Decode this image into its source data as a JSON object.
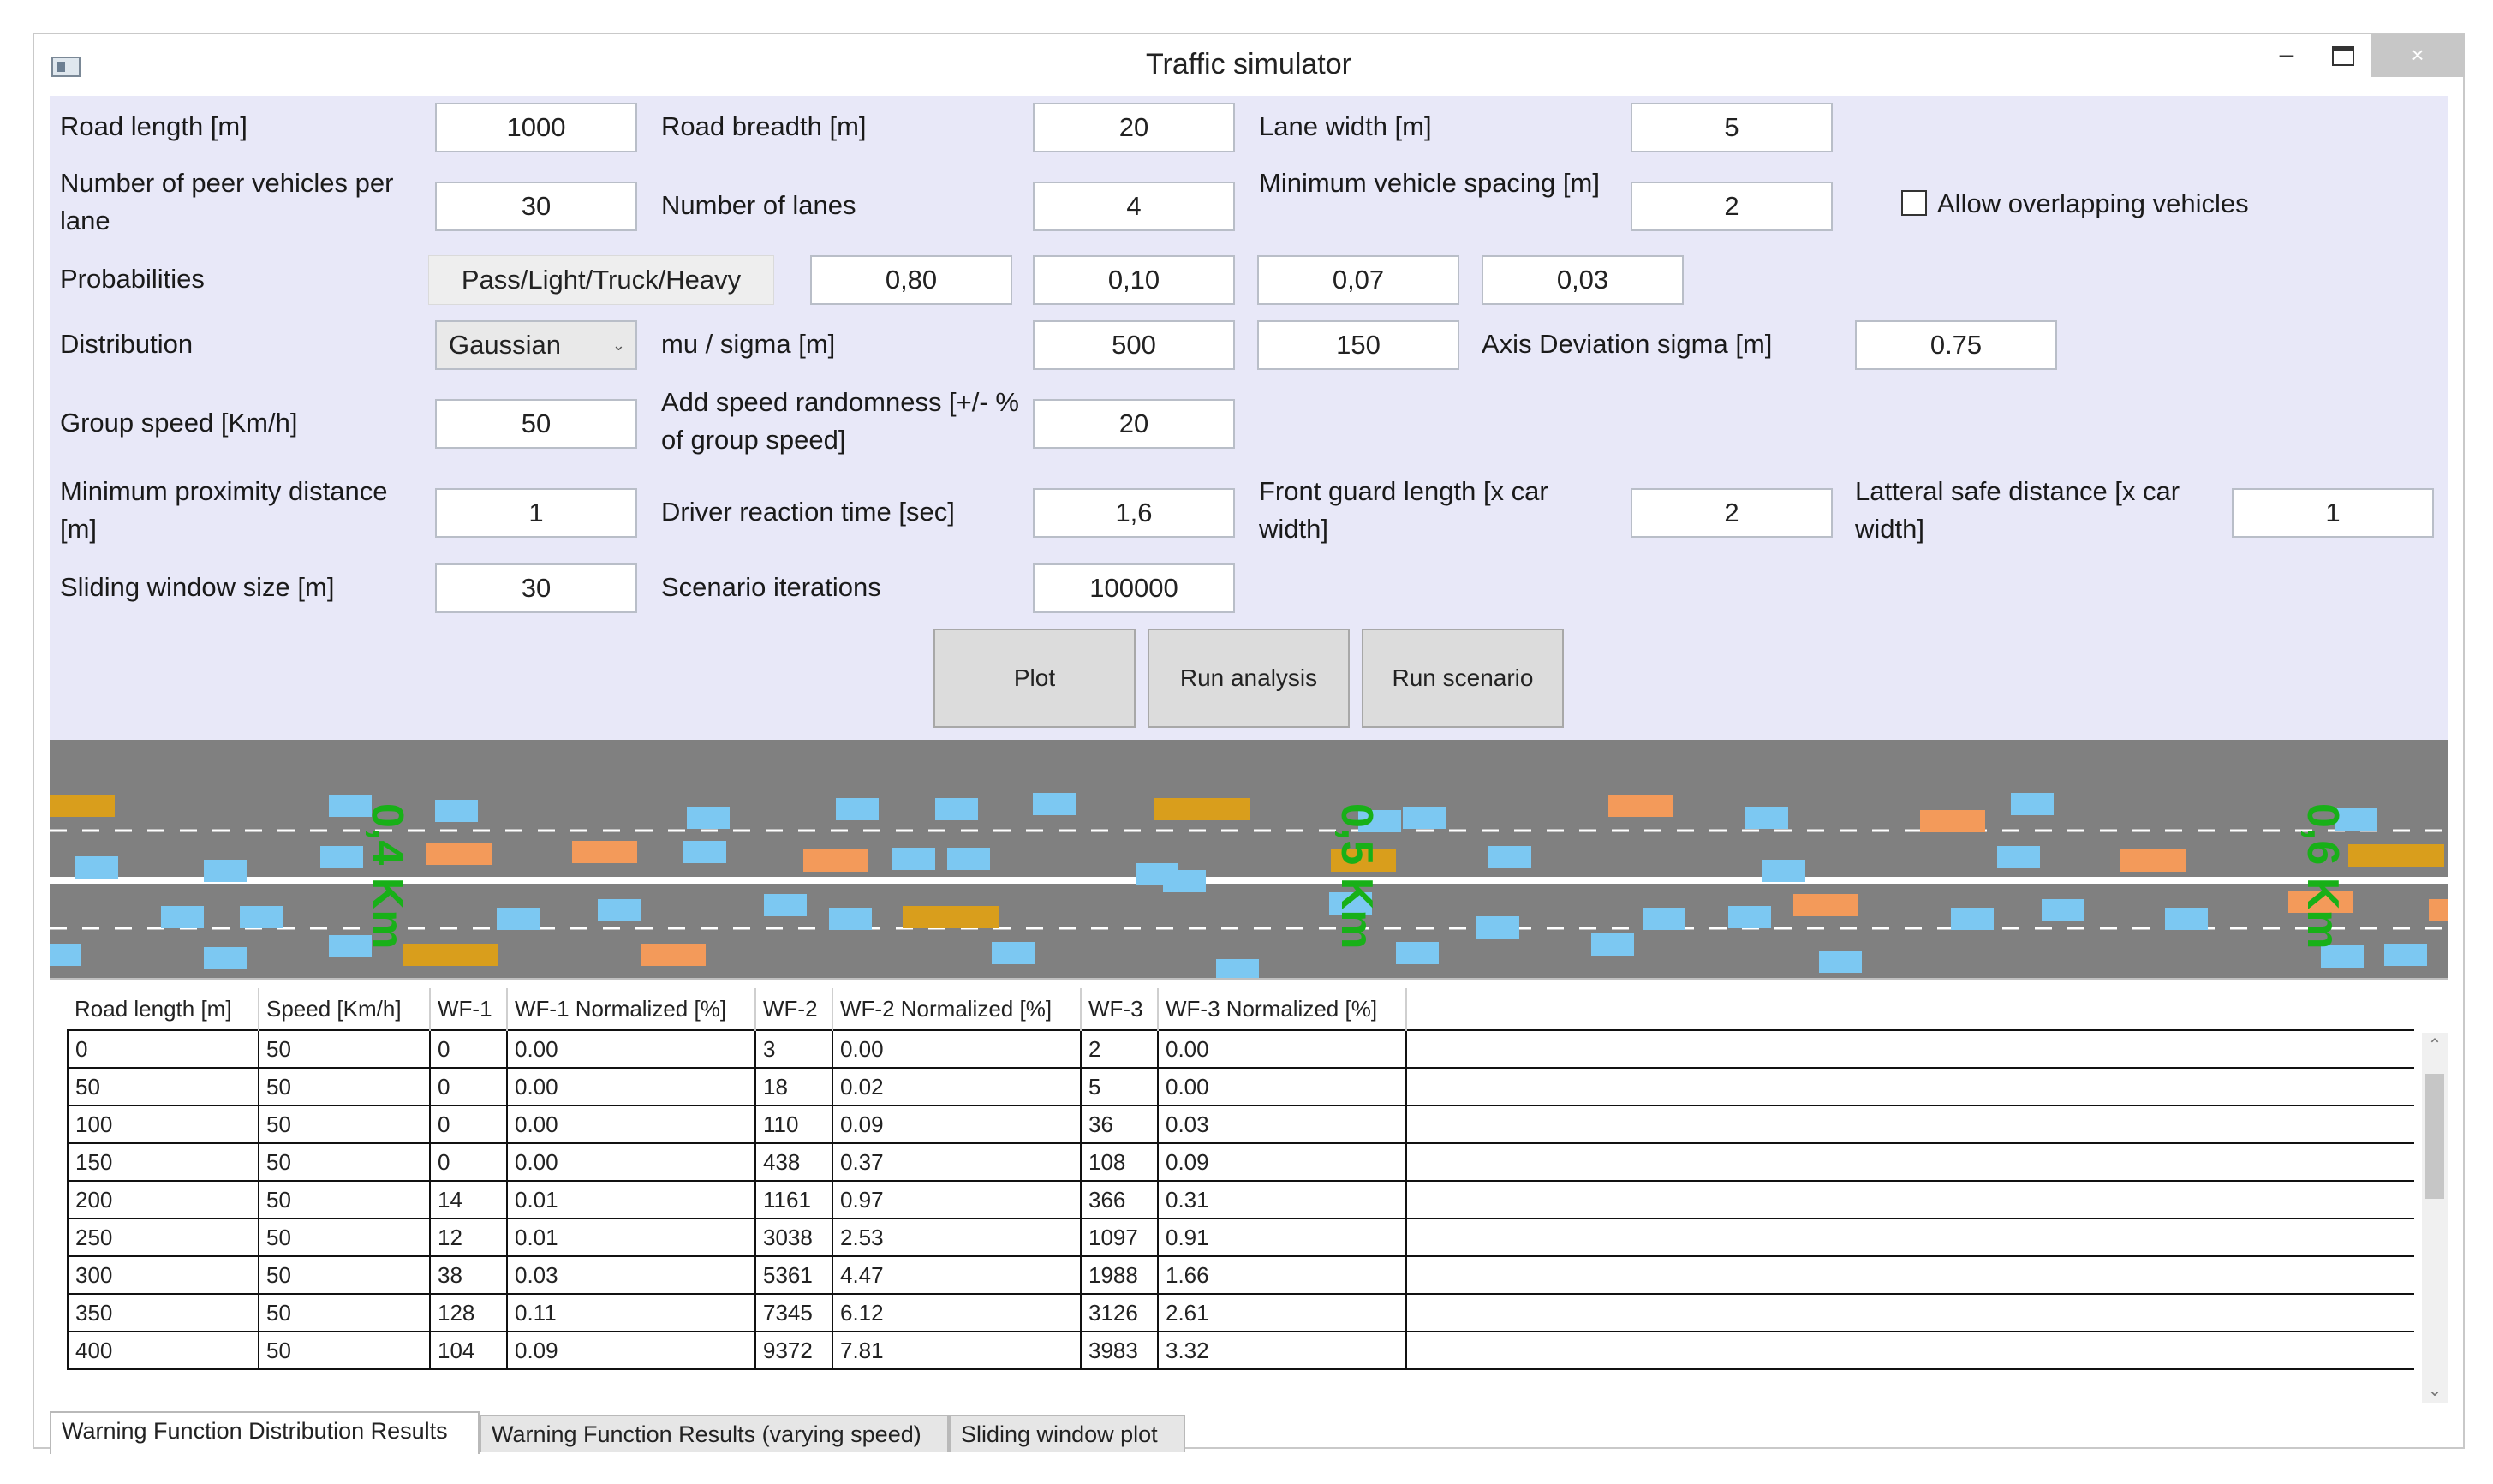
{
  "window": {
    "title": "Traffic simulator",
    "min_label": "–",
    "close_label": "×"
  },
  "params": {
    "road_length_label": "Road length [m]",
    "road_length": "1000",
    "road_breadth_label": "Road breadth [m]",
    "road_breadth": "20",
    "lane_width_label": "Lane width [m]",
    "lane_width": "5",
    "peer_vehicles_label": "Number of peer vehicles per lane",
    "peer_vehicles": "30",
    "lanes_label": "Number of lanes",
    "lanes": "4",
    "min_spacing_label": "Minimum vehicle spacing [m]",
    "min_spacing": "2",
    "allow_overlap_label": "Allow overlapping vehicles",
    "allow_overlap": false,
    "probabilities_label": "Probabilities",
    "prob_tag": "Pass/Light/Truck/Heavy",
    "prob_pass": "0,80",
    "prob_light": "0,10",
    "prob_truck": "0,07",
    "prob_heavy": "0,03",
    "distribution_label": "Distribution",
    "distribution": "Gaussian",
    "mu_sigma_label": "mu / sigma [m]",
    "mu": "500",
    "sigma": "150",
    "axis_dev_label": "Axis Deviation sigma [m]",
    "axis_dev": "0.75",
    "group_speed_label": "Group speed [Km/h]",
    "group_speed": "50",
    "speed_rand_label": "Add speed randomness [+/- % of group speed]",
    "speed_rand": "20",
    "min_prox_label": "Minimum proximity distance [m]",
    "min_prox": "1",
    "reaction_label": "Driver reaction time [sec]",
    "reaction": "1,6",
    "front_guard_label": "Front guard length [x car width]",
    "front_guard": "2",
    "lateral_label": "Latteral safe distance [x car width]",
    "lateral": "1",
    "window_size_label": "Sliding window size [m]",
    "window_size": "30",
    "iterations_label": "Scenario iterations",
    "iterations": "100000"
  },
  "buttons": {
    "plot": "Plot",
    "run_analysis": "Run analysis",
    "run_scenario": "Run scenario"
  },
  "road": {
    "markers": [
      "0,4 Km",
      "0,5 Km",
      "0,6 Km"
    ]
  },
  "table": {
    "headers": [
      "Road length [m]",
      "Speed [Km/h]",
      "WF-1",
      "WF-1 Normalized [%]",
      "WF-2",
      "WF-2 Normalized [%]",
      "WF-3",
      "WF-3 Normalized [%]"
    ],
    "rows": [
      [
        "0",
        "50",
        "0",
        "0.00",
        "3",
        "0.00",
        "2",
        "0.00"
      ],
      [
        "50",
        "50",
        "0",
        "0.00",
        "18",
        "0.02",
        "5",
        "0.00"
      ],
      [
        "100",
        "50",
        "0",
        "0.00",
        "110",
        "0.09",
        "36",
        "0.03"
      ],
      [
        "150",
        "50",
        "0",
        "0.00",
        "438",
        "0.37",
        "108",
        "0.09"
      ],
      [
        "200",
        "50",
        "14",
        "0.01",
        "1161",
        "0.97",
        "366",
        "0.31"
      ],
      [
        "250",
        "50",
        "12",
        "0.01",
        "3038",
        "2.53",
        "1097",
        "0.91"
      ],
      [
        "300",
        "50",
        "38",
        "0.03",
        "5361",
        "4.47",
        "1988",
        "1.66"
      ],
      [
        "350",
        "50",
        "128",
        "0.11",
        "7345",
        "6.12",
        "3126",
        "2.61"
      ],
      [
        "400",
        "50",
        "104",
        "0.09",
        "9372",
        "7.81",
        "3983",
        "3.32"
      ]
    ]
  },
  "tabs": [
    "Warning Function Distribution Results",
    "Warning Function Results (varying speed)",
    "Sliding window plot"
  ],
  "colors": {
    "panel": "#e8e8f8",
    "road": "#808080",
    "car_blue": "#7cc8f2",
    "car_orange": "#f39a5a",
    "car_gold": "#d99e1c",
    "marker": "#18b018"
  }
}
